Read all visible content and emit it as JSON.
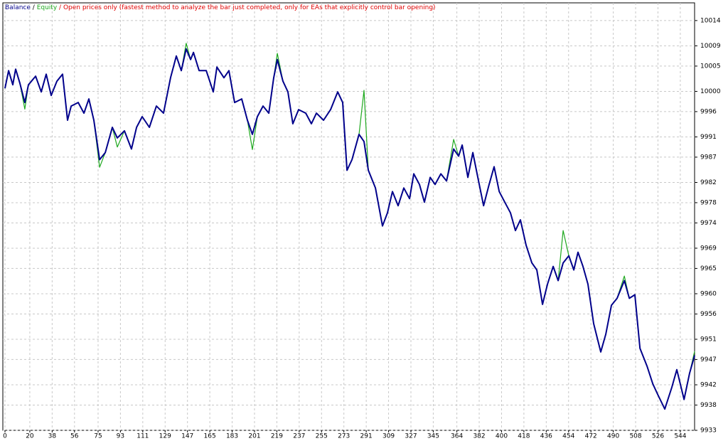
{
  "chart_data": {
    "type": "line",
    "legend_separator": "/",
    "annotation": "/ Open prices only (fastest method to analyze the bar just completed, only for EAs that explicitly control bar opening)",
    "x": [
      0,
      2.9,
      6.3,
      8.6,
      12.0,
      16.0,
      18.9,
      24.7,
      29.2,
      33.2,
      37.2,
      41.8,
      46.4,
      50.4,
      53.3,
      59.0,
      63.6,
      67.6,
      71.6,
      76.2,
      80.8,
      86.5,
      90.5,
      96.2,
      101.9,
      106.0,
      110.5,
      116.3,
      122.0,
      127.7,
      133.4,
      138.0,
      142.0,
      146.0,
      149.5,
      151.8,
      156.4,
      162.1,
      167.8,
      170.7,
      176.4,
      180.4,
      185.0,
      190.7,
      195.3,
      199.3,
      203.3,
      207.9,
      212.5,
      216.5,
      219.4,
      223.9,
      227.9,
      231.9,
      236.5,
      242.3,
      246.8,
      250.9,
      256.6,
      262.3,
      268.0,
      272.0,
      275.5,
      279.5,
      285.2,
      289.2,
      292.7,
      298.4,
      304.1,
      308.1,
      312.1,
      316.7,
      321.3,
      325.9,
      329.3,
      333.9,
      337.9,
      342.5,
      346.5,
      351.1,
      355.7,
      361.4,
      365.4,
      368.3,
      372.9,
      376.9,
      380.9,
      385.5,
      390.0,
      394.0,
      398.1,
      402.6,
      407.2,
      411.2,
      415.2,
      419.8,
      424.4,
      428.4,
      433.0,
      437.0,
      441.6,
      445.6,
      449.6,
      454.2,
      458.2,
      461.6,
      465.6,
      469.6,
      474.2,
      479.9,
      484.0,
      488.5,
      493.1,
      498.9,
      502.9,
      507.4,
      511.5,
      517.2,
      521.8,
      525.8,
      531.5,
      537.2,
      541.2,
      547.0,
      551.5,
      555.5
    ],
    "series": [
      {
        "name": "Balance",
        "color": "#00008b",
        "values": [
          10000.6,
          10004.1,
          10001.3,
          10004.4,
          10001.6,
          9997.8,
          10001.3,
          10003.0,
          9999.9,
          10003.4,
          9999.2,
          10002.0,
          10003.4,
          9994.3,
          9997.1,
          9997.8,
          9995.7,
          9998.5,
          9994.3,
          9986.5,
          9987.9,
          9992.9,
          9990.8,
          9992.2,
          9988.6,
          9992.9,
          9995.0,
          9992.9,
          9997.1,
          9995.7,
          10002.7,
          10007.0,
          10004.1,
          10008.4,
          10006.3,
          10007.7,
          10004.1,
          10004.1,
          9999.9,
          10004.8,
          10002.7,
          10004.1,
          9997.8,
          9998.5,
          9994.3,
          9991.5,
          9995.0,
          9997.1,
          9995.7,
          10002.7,
          10006.3,
          10002.0,
          9999.9,
          9993.6,
          9996.4,
          9995.7,
          9993.6,
          9995.7,
          9994.3,
          9996.4,
          9999.9,
          9997.8,
          9984.4,
          9986.5,
          9991.5,
          9990.1,
          9984.4,
          9980.9,
          9973.4,
          9976.0,
          9980.2,
          9977.4,
          9980.9,
          9978.8,
          9983.7,
          9981.6,
          9978.1,
          9983.0,
          9981.6,
          9983.7,
          9982.3,
          9988.6,
          9987.2,
          9989.4,
          9983.0,
          9987.9,
          9983.0,
          9977.4,
          9981.6,
          9985.1,
          9980.2,
          9978.1,
          9976.0,
          9972.5,
          9974.6,
          9969.6,
          9966.1,
          9964.7,
          9957.9,
          9961.9,
          9965.4,
          9962.6,
          9966.1,
          9967.5,
          9964.7,
          9968.2,
          9965.4,
          9961.9,
          9954.1,
          9948.5,
          9952.0,
          9957.7,
          9959.1,
          9962.6,
          9959.1,
          9959.8,
          9949.2,
          9945.7,
          9942.2,
          9940.1,
          9937.2,
          9941.5,
          9945.0,
          9939.1,
          9944.3,
          9947.8
        ]
      },
      {
        "name": "Equity",
        "color": "#1ea81e",
        "values": [
          10000.6,
          10004.1,
          10001.3,
          10004.4,
          10001.6,
          9996.5,
          10001.3,
          10003.0,
          9999.9,
          10003.4,
          9999.2,
          10002.0,
          10003.4,
          9994.3,
          9997.1,
          9997.8,
          9995.7,
          9998.5,
          9994.3,
          9985.0,
          9987.9,
          9992.9,
          9989.0,
          9992.2,
          9988.6,
          9992.9,
          9995.0,
          9992.9,
          9997.1,
          9995.7,
          10002.7,
          10007.0,
          10004.1,
          10009.5,
          10006.3,
          10007.7,
          10004.1,
          10004.1,
          9999.9,
          10004.8,
          10002.7,
          10004.1,
          9997.8,
          9998.5,
          9994.3,
          9988.5,
          9995.0,
          9997.1,
          9995.7,
          10002.7,
          10007.5,
          10002.0,
          9999.9,
          9993.6,
          9996.4,
          9995.7,
          9993.6,
          9995.7,
          9994.3,
          9996.4,
          9999.9,
          9997.8,
          9984.4,
          9986.5,
          9991.5,
          10000.2,
          9984.4,
          9980.9,
          9973.4,
          9976.0,
          9980.2,
          9977.4,
          9980.9,
          9978.8,
          9983.7,
          9981.6,
          9978.1,
          9983.0,
          9981.6,
          9983.7,
          9982.3,
          9990.5,
          9987.2,
          9989.4,
          9983.0,
          9987.9,
          9983.0,
          9977.4,
          9981.6,
          9985.1,
          9980.2,
          9978.1,
          9976.0,
          9972.5,
          9974.6,
          9969.6,
          9966.1,
          9964.7,
          9957.9,
          9961.9,
          9965.4,
          9962.6,
          9972.5,
          9967.5,
          9964.7,
          9968.2,
          9965.4,
          9961.9,
          9954.1,
          9948.5,
          9952.0,
          9957.7,
          9959.1,
          9963.5,
          9959.1,
          9959.8,
          9949.2,
          9945.7,
          9942.2,
          9940.1,
          9937.2,
          9941.5,
          9945.0,
          9939.1,
          9944.3,
          9948.6
        ]
      }
    ],
    "xlim": [
      0,
      555.5
    ],
    "xticks": [
      0,
      20,
      38,
      56,
      75,
      93,
      111,
      129,
      147,
      165,
      183,
      201,
      219,
      237,
      255,
      273,
      291,
      309,
      327,
      345,
      364,
      382,
      400,
      418,
      436,
      454,
      472,
      490,
      508,
      526,
      544
    ],
    "ylim": [
      9933,
      10017.5
    ],
    "yticks": [
      9933,
      9938,
      9942,
      9947,
      9951,
      9956,
      9960,
      9965,
      9969,
      9974,
      9978,
      9982,
      9987,
      9991,
      9996,
      10000,
      10005,
      10009,
      10014
    ],
    "grid": true
  }
}
